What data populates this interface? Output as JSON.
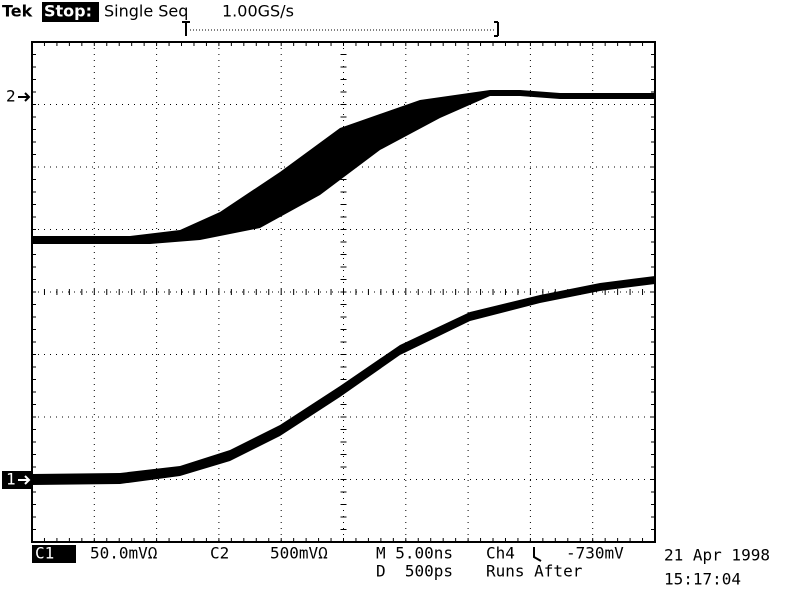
{
  "header": {
    "brand": "Tek",
    "state": "Stop:",
    "mode": "Single Seq",
    "sample_rate": "1.00GS/s"
  },
  "markers": {
    "ch2": "2",
    "ch1": "1"
  },
  "footer": {
    "ch1_label": "C1",
    "ch1_scale": "50.0mVΩ",
    "ch2_label": "C2",
    "ch2_scale": "500mVΩ",
    "main_timebase": "M 5.00ns",
    "trigger_source": "Ch4",
    "trigger_level": "-730mV",
    "delayed_timebase": "D  500ps",
    "runs_after": "Runs After"
  },
  "timestamp": {
    "date": "21 Apr 1998",
    "time": "15:17:04"
  }
}
